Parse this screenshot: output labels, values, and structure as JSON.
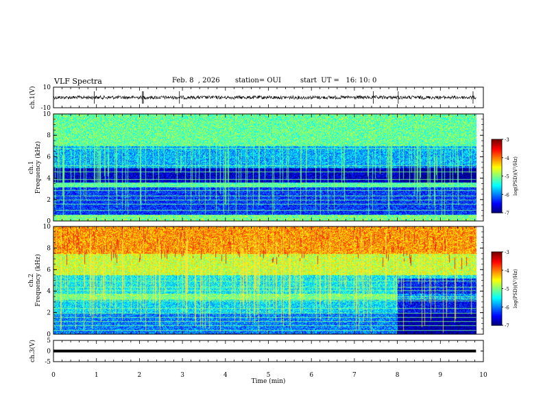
{
  "header": {
    "title": "VLF Spectra",
    "date": "Feb. 8  , 2026",
    "station": "station= OUI",
    "start_ut": "start  UT =   16: 10: 0"
  },
  "chart_data": [
    {
      "type": "line",
      "panel": "ch1-waveform",
      "ylabel": "ch.1(V)",
      "ylim": [
        -10,
        10
      ],
      "ytick_labels": [
        "10",
        "-10"
      ],
      "xlim": [
        0,
        10
      ],
      "series": [
        {
          "values_description": null,
          "x": [
            0,
            9.83
          ],
          "y": [
            0,
            0
          ]
        }
      ]
    },
    {
      "type": "heatmap",
      "panel": "ch1-spectrogram",
      "ylabel": "ch.1\nFrequency  (kHz)",
      "ylim": [
        0,
        10
      ],
      "ytick_labels": [
        "0",
        "2",
        "4",
        "6",
        "8",
        "10"
      ],
      "xlim": [
        0,
        10
      ],
      "data_end_min": 9.83,
      "colorbar": {
        "label": "log(PSD)(V²/Hz)",
        "range": [
          -7,
          -3
        ],
        "tick_labels": [
          "-3",
          "-4",
          "-5",
          "-6",
          "-7"
        ]
      },
      "bands": [
        {
          "f": [
            0.0,
            0.6
          ],
          "level": -5.0
        },
        {
          "f": [
            0.6,
            3.2
          ],
          "level": -6.3
        },
        {
          "f": [
            3.2,
            3.6
          ],
          "level": -5.2
        },
        {
          "f": [
            3.6,
            5.0
          ],
          "level": -6.7
        },
        {
          "f": [
            5.0,
            7.0
          ],
          "level": -5.8
        },
        {
          "f": [
            7.0,
            10.0
          ],
          "level": -5.1
        }
      ]
    },
    {
      "type": "heatmap",
      "panel": "ch2-spectrogram",
      "ylabel": "ch.2\nFrequency  (kHz)",
      "ylim": [
        0,
        10
      ],
      "ytick_labels": [
        "0",
        "2",
        "4",
        "6",
        "8",
        "10"
      ],
      "xlim": [
        0,
        10
      ],
      "data_end_min": 9.83,
      "colorbar": {
        "label": "log(PSD)(V²/Hz)",
        "range": [
          -7,
          -3
        ],
        "tick_labels": [
          "-3",
          "-4",
          "-5",
          "-6",
          "-7"
        ]
      },
      "change_time_min": 8.0,
      "bands": [
        {
          "f": [
            0.0,
            2.0
          ],
          "level": -6.0
        },
        {
          "f": [
            2.0,
            3.2
          ],
          "level": -5.6
        },
        {
          "f": [
            3.2,
            3.8
          ],
          "level": -5.0
        },
        {
          "f": [
            3.8,
            5.5
          ],
          "level": -5.5
        },
        {
          "f": [
            5.5,
            7.5
          ],
          "level": -4.7
        },
        {
          "f": [
            7.5,
            10.0
          ],
          "level": -4.1
        }
      ]
    },
    {
      "type": "line",
      "panel": "ch3-waveform",
      "ylabel": "ch.3(V)",
      "ylim": [
        -5,
        5
      ],
      "ytick_labels": [
        "5",
        "0",
        "-5"
      ],
      "xlim": [
        0,
        10
      ],
      "xlabel": "Time  (min)",
      "xtick_labels": [
        "0",
        "1",
        "2",
        "3",
        "4",
        "5",
        "6",
        "7",
        "8",
        "9",
        "10"
      ],
      "series": [
        {
          "x": [
            0,
            9.83
          ],
          "y": [
            0,
            0
          ]
        }
      ]
    }
  ]
}
